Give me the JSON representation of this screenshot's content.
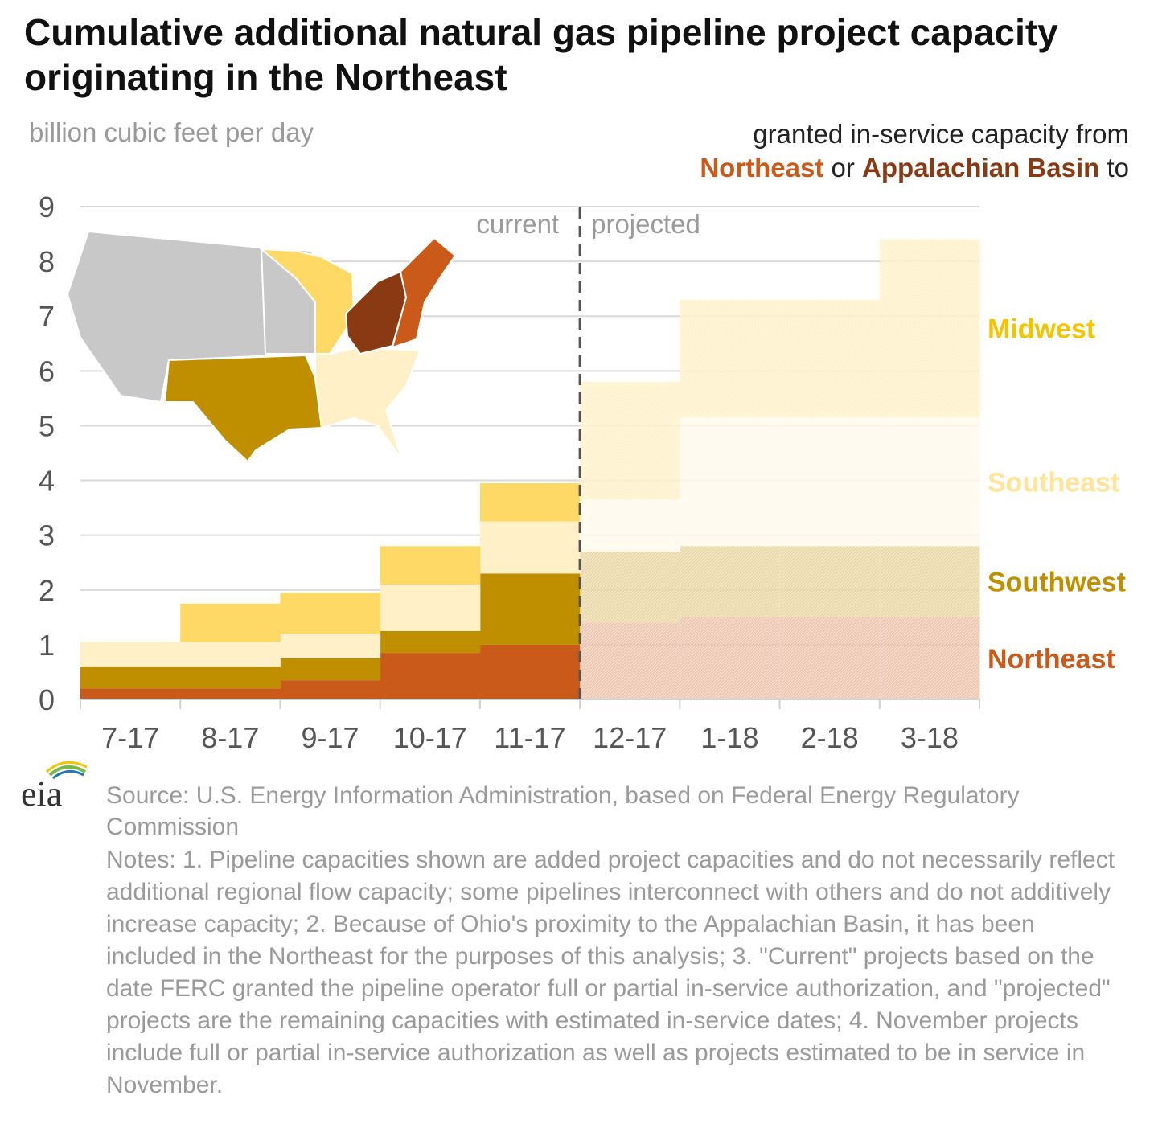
{
  "title": "Cumulative additional natural gas pipeline project capacity originating in the Northeast",
  "unit_label": "billion cubic feet per day",
  "legend_note": {
    "line1": "granted in-service capacity from",
    "northeast": "Northeast",
    "or": "or",
    "appalachian": "Appalachian Basin",
    "to": "to"
  },
  "phase_labels": {
    "current": "current",
    "projected": "projected"
  },
  "source": "Source: U.S. Energy Information Administration, based on Federal Energy Regulatory Commission",
  "notes": "Notes: 1. Pipeline capacities shown are added project capacities and do not necessarily reflect additional regional flow capacity; some pipelines interconnect with others and do not additively increase capacity; 2. Because of Ohio's proximity to the Appalachian Basin, it has been included in the Northeast for the purposes of this analysis; 3. \"Current\" projects based on the date FERC granted the pipeline operator full or partial in-service authorization, and \"projected\" projects are the remaining capacities with estimated in-service dates; 4. November projects include full or partial in-service authorization as well as projects estimated to be in service in November.",
  "logo_text": "eia",
  "chart_data": {
    "type": "area",
    "stacked": true,
    "step": true,
    "categories": [
      "7-17",
      "8-17",
      "9-17",
      "10-17",
      "11-17",
      "12-17",
      "1-18",
      "2-18",
      "3-18"
    ],
    "current_count": 5,
    "ylim": [
      0,
      9
    ],
    "yticks": [
      0,
      1,
      2,
      3,
      4,
      5,
      6,
      7,
      8,
      9
    ],
    "grid": true,
    "series": [
      {
        "name": "Northeast",
        "color": "#c95a1a",
        "label_color": "#c95a1a",
        "values": [
          0.2,
          0.2,
          0.35,
          0.85,
          1.0,
          1.4,
          1.5,
          1.5,
          1.5
        ]
      },
      {
        "name": "Southwest",
        "color": "#bf8f00",
        "label_color": "#bf8f00",
        "values": [
          0.4,
          0.4,
          0.4,
          0.4,
          1.3,
          1.3,
          1.3,
          1.3,
          1.3
        ]
      },
      {
        "name": "Southeast",
        "color": "#fff0c8",
        "label_color": "#ffe49a",
        "values": [
          0.45,
          0.45,
          0.45,
          0.85,
          0.95,
          0.95,
          2.35,
          2.35,
          2.35
        ]
      },
      {
        "name": "Midwest",
        "color": "#ffd966",
        "label_color": "#f5c400",
        "values": [
          0.0,
          0.7,
          0.75,
          0.7,
          0.7,
          2.15,
          2.15,
          2.15,
          3.25
        ]
      }
    ]
  },
  "map": {
    "regions": [
      {
        "name": "Northeast",
        "color": "#c95a1a"
      },
      {
        "name": "Appalachian Basin",
        "color": "#8a3a12"
      },
      {
        "name": "Midwest",
        "color": "#ffd966"
      },
      {
        "name": "Southeast",
        "color": "#fff0c8"
      },
      {
        "name": "Southwest",
        "color": "#bf8f00"
      },
      {
        "name": "other",
        "color": "#c8c8c8"
      }
    ]
  }
}
